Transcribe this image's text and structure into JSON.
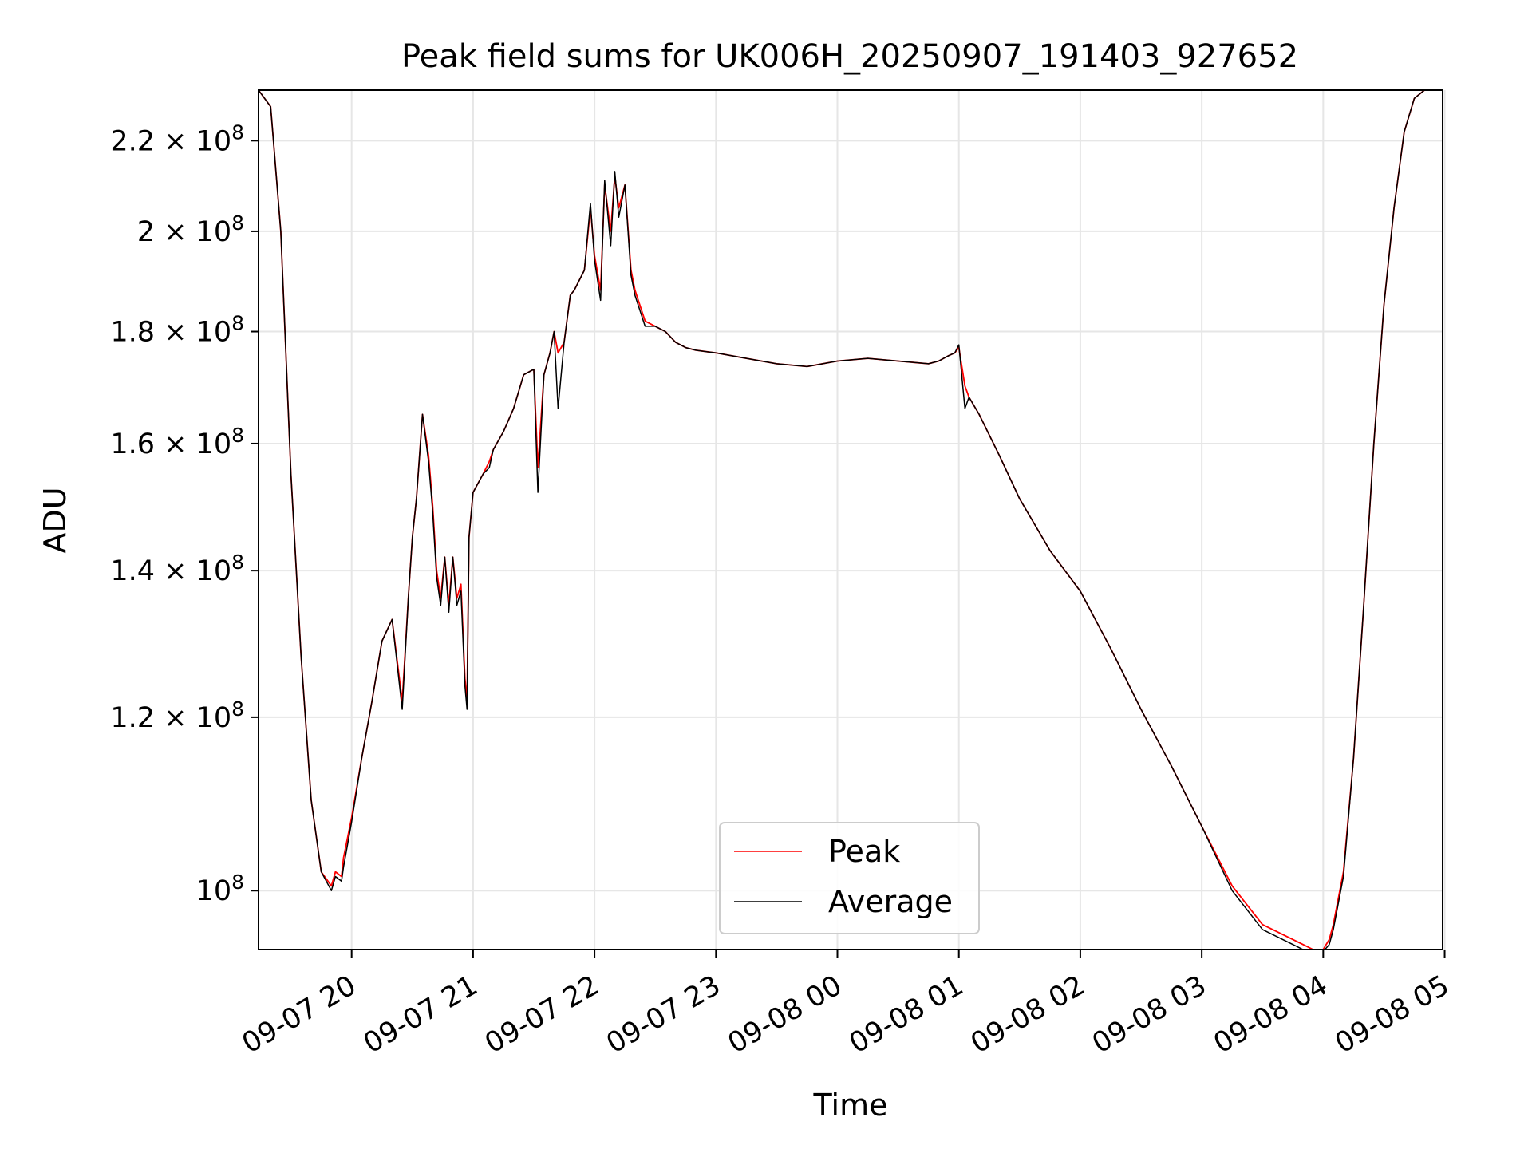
{
  "chart_data": {
    "type": "line",
    "title": "Peak field sums for UK006H_20250907_191403_927652",
    "xlabel": "Time",
    "ylabel": "ADU",
    "y_scale": "log",
    "xlim": [
      "2025-09-07 19:14",
      "2025-09-08 04:59"
    ],
    "ylim": [
      94000000,
      232000000
    ],
    "grid": true,
    "legend": {
      "placement": "lower-center"
    },
    "x_ticks": [
      "09-07 20",
      "09-07 21",
      "09-07 22",
      "09-07 23",
      "09-08 00",
      "09-08 01",
      "09-08 02",
      "09-08 03",
      "09-08 04",
      "09-08 05"
    ],
    "x_tick_times": [
      "2025-09-07 20:00",
      "2025-09-07 21:00",
      "2025-09-07 22:00",
      "2025-09-07 23:00",
      "2025-09-08 00:00",
      "2025-09-08 01:00",
      "2025-09-08 02:00",
      "2025-09-08 03:00",
      "2025-09-08 04:00",
      "2025-09-08 05:00"
    ],
    "y_ticks": [
      {
        "value": 100000000,
        "mantissa": "",
        "exponent": "8"
      },
      {
        "value": 120000000,
        "mantissa": "1.2",
        "exponent": "8"
      },
      {
        "value": 140000000,
        "mantissa": "1.4",
        "exponent": "8"
      },
      {
        "value": 160000000,
        "mantissa": "1.6",
        "exponent": "8"
      },
      {
        "value": 180000000,
        "mantissa": "1.8",
        "exponent": "8"
      },
      {
        "value": 200000000,
        "mantissa": "2",
        "exponent": "8"
      },
      {
        "value": 220000000,
        "mantissa": "2.2",
        "exponent": "8"
      }
    ],
    "series": [
      {
        "name": "Peak",
        "color": "#ff0000",
        "x": [
          "2025-09-07 19:14",
          "2025-09-07 19:20",
          "2025-09-07 19:25",
          "2025-09-07 19:30",
          "2025-09-07 19:35",
          "2025-09-07 19:40",
          "2025-09-07 19:45",
          "2025-09-07 19:50",
          "2025-09-07 19:52",
          "2025-09-07 19:55",
          "2025-09-07 19:56",
          "2025-09-07 20:00",
          "2025-09-07 20:05",
          "2025-09-07 20:10",
          "2025-09-07 20:15",
          "2025-09-07 20:20",
          "2025-09-07 20:25",
          "2025-09-07 20:28",
          "2025-09-07 20:30",
          "2025-09-07 20:32",
          "2025-09-07 20:35",
          "2025-09-07 20:38",
          "2025-09-07 20:40",
          "2025-09-07 20:42",
          "2025-09-07 20:44",
          "2025-09-07 20:46",
          "2025-09-07 20:48",
          "2025-09-07 20:50",
          "2025-09-07 20:52",
          "2025-09-07 20:54",
          "2025-09-07 20:56",
          "2025-09-07 20:57",
          "2025-09-07 20:58",
          "2025-09-07 21:00",
          "2025-09-07 21:05",
          "2025-09-07 21:08",
          "2025-09-07 21:10",
          "2025-09-07 21:15",
          "2025-09-07 21:20",
          "2025-09-07 21:25",
          "2025-09-07 21:30",
          "2025-09-07 21:32",
          "2025-09-07 21:35",
          "2025-09-07 21:38",
          "2025-09-07 21:40",
          "2025-09-07 21:42",
          "2025-09-07 21:45",
          "2025-09-07 21:48",
          "2025-09-07 21:50",
          "2025-09-07 21:55",
          "2025-09-07 21:58",
          "2025-09-07 22:00",
          "2025-09-07 22:03",
          "2025-09-07 22:05",
          "2025-09-07 22:08",
          "2025-09-07 22:10",
          "2025-09-07 22:12",
          "2025-09-07 22:15",
          "2025-09-07 22:18",
          "2025-09-07 22:20",
          "2025-09-07 22:25",
          "2025-09-07 22:30",
          "2025-09-07 22:35",
          "2025-09-07 22:40",
          "2025-09-07 22:45",
          "2025-09-07 22:50",
          "2025-09-07 23:00",
          "2025-09-07 23:15",
          "2025-09-07 23:30",
          "2025-09-07 23:45",
          "2025-09-08 00:00",
          "2025-09-08 00:15",
          "2025-09-08 00:30",
          "2025-09-08 00:45",
          "2025-09-08 00:50",
          "2025-09-08 00:55",
          "2025-09-08 00:58",
          "2025-09-08 01:00",
          "2025-09-08 01:03",
          "2025-09-08 01:05",
          "2025-09-08 01:10",
          "2025-09-08 01:20",
          "2025-09-08 01:30",
          "2025-09-08 01:45",
          "2025-09-08 02:00",
          "2025-09-08 02:15",
          "2025-09-08 02:30",
          "2025-09-08 02:45",
          "2025-09-08 03:00",
          "2025-09-08 03:15",
          "2025-09-08 03:30",
          "2025-09-08 03:45",
          "2025-09-08 03:50",
          "2025-09-08 03:55",
          "2025-09-08 04:00",
          "2025-09-08 04:03",
          "2025-09-08 04:05",
          "2025-09-08 04:10",
          "2025-09-08 04:15",
          "2025-09-08 04:20",
          "2025-09-08 04:25",
          "2025-09-08 04:30",
          "2025-09-08 04:35",
          "2025-09-08 04:40",
          "2025-09-08 04:45",
          "2025-09-08 04:50",
          "2025-09-08 04:53",
          "2025-09-08 04:59"
        ],
        "y": [
          232000000,
          228000000,
          200000000,
          155000000,
          128000000,
          110000000,
          102000000,
          100500000,
          102000000,
          101500000,
          103500000,
          108000000,
          115000000,
          122000000,
          130000000,
          133000000,
          122000000,
          136000000,
          145000000,
          151000000,
          165000000,
          158000000,
          150000000,
          140000000,
          136000000,
          142000000,
          135000000,
          142000000,
          136000000,
          138000000,
          125000000,
          122000000,
          145000000,
          152000000,
          155000000,
          157000000,
          159000000,
          162000000,
          166000000,
          172000000,
          173000000,
          156000000,
          172000000,
          176000000,
          180000000,
          176000000,
          178000000,
          187000000,
          188000000,
          192000000,
          205000000,
          195000000,
          188000000,
          210000000,
          200000000,
          212000000,
          205000000,
          210000000,
          192000000,
          188000000,
          182000000,
          181000000,
          180000000,
          178000000,
          177000000,
          176500000,
          176000000,
          175000000,
          174000000,
          173500000,
          174500000,
          175000000,
          174500000,
          174000000,
          174500000,
          175500000,
          176000000,
          177000000,
          170000000,
          168000000,
          165000000,
          158000000,
          151000000,
          143000000,
          137000000,
          129000000,
          121000000,
          114000000,
          107000000,
          100500000,
          96500000,
          95000000,
          94500000,
          94000000,
          94000000,
          95000000,
          96500000,
          102000000,
          115000000,
          135000000,
          160000000,
          185000000,
          205000000,
          222000000,
          230000000,
          232000000,
          232000000,
          232000000
        ]
      },
      {
        "name": "Average",
        "color": "#000000",
        "x": [
          "2025-09-07 19:14",
          "2025-09-07 19:20",
          "2025-09-07 19:25",
          "2025-09-07 19:30",
          "2025-09-07 19:35",
          "2025-09-07 19:40",
          "2025-09-07 19:45",
          "2025-09-07 19:50",
          "2025-09-07 19:52",
          "2025-09-07 19:55",
          "2025-09-07 19:56",
          "2025-09-07 20:00",
          "2025-09-07 20:05",
          "2025-09-07 20:10",
          "2025-09-07 20:15",
          "2025-09-07 20:20",
          "2025-09-07 20:25",
          "2025-09-07 20:28",
          "2025-09-07 20:30",
          "2025-09-07 20:32",
          "2025-09-07 20:35",
          "2025-09-07 20:38",
          "2025-09-07 20:40",
          "2025-09-07 20:42",
          "2025-09-07 20:44",
          "2025-09-07 20:46",
          "2025-09-07 20:48",
          "2025-09-07 20:50",
          "2025-09-07 20:52",
          "2025-09-07 20:54",
          "2025-09-07 20:56",
          "2025-09-07 20:57",
          "2025-09-07 20:58",
          "2025-09-07 21:00",
          "2025-09-07 21:05",
          "2025-09-07 21:08",
          "2025-09-07 21:10",
          "2025-09-07 21:15",
          "2025-09-07 21:20",
          "2025-09-07 21:25",
          "2025-09-07 21:30",
          "2025-09-07 21:32",
          "2025-09-07 21:35",
          "2025-09-07 21:38",
          "2025-09-07 21:40",
          "2025-09-07 21:42",
          "2025-09-07 21:45",
          "2025-09-07 21:48",
          "2025-09-07 21:50",
          "2025-09-07 21:55",
          "2025-09-07 21:58",
          "2025-09-07 22:00",
          "2025-09-07 22:03",
          "2025-09-07 22:05",
          "2025-09-07 22:08",
          "2025-09-07 22:10",
          "2025-09-07 22:12",
          "2025-09-07 22:15",
          "2025-09-07 22:18",
          "2025-09-07 22:20",
          "2025-09-07 22:25",
          "2025-09-07 22:30",
          "2025-09-07 22:35",
          "2025-09-07 22:40",
          "2025-09-07 22:45",
          "2025-09-07 22:50",
          "2025-09-07 23:00",
          "2025-09-07 23:15",
          "2025-09-07 23:30",
          "2025-09-07 23:45",
          "2025-09-08 00:00",
          "2025-09-08 00:15",
          "2025-09-08 00:30",
          "2025-09-08 00:45",
          "2025-09-08 00:50",
          "2025-09-08 00:55",
          "2025-09-08 00:58",
          "2025-09-08 01:00",
          "2025-09-08 01:03",
          "2025-09-08 01:05",
          "2025-09-08 01:10",
          "2025-09-08 01:20",
          "2025-09-08 01:30",
          "2025-09-08 01:45",
          "2025-09-08 02:00",
          "2025-09-08 02:15",
          "2025-09-08 02:30",
          "2025-09-08 02:45",
          "2025-09-08 03:00",
          "2025-09-08 03:15",
          "2025-09-08 03:30",
          "2025-09-08 03:45",
          "2025-09-08 03:50",
          "2025-09-08 03:55",
          "2025-09-08 04:00",
          "2025-09-08 04:03",
          "2025-09-08 04:05",
          "2025-09-08 04:10",
          "2025-09-08 04:15",
          "2025-09-08 04:20",
          "2025-09-08 04:25",
          "2025-09-08 04:30",
          "2025-09-08 04:35",
          "2025-09-08 04:40",
          "2025-09-08 04:45",
          "2025-09-08 04:50",
          "2025-09-08 04:53",
          "2025-09-08 04:59"
        ],
        "y": [
          232000000,
          228000000,
          200000000,
          155000000,
          128000000,
          110000000,
          102000000,
          100000000,
          101500000,
          101000000,
          102500000,
          107500000,
          115000000,
          122000000,
          130000000,
          133000000,
          121000000,
          136000000,
          145000000,
          151000000,
          165000000,
          157000000,
          149000000,
          139000000,
          135000000,
          142000000,
          134000000,
          142000000,
          135000000,
          137000000,
          124000000,
          121000000,
          145000000,
          152000000,
          155000000,
          156000000,
          159000000,
          162000000,
          166000000,
          172000000,
          173000000,
          152000000,
          172000000,
          176000000,
          180000000,
          166000000,
          178000000,
          187000000,
          188000000,
          192000000,
          206000000,
          194000000,
          186000000,
          211000000,
          197000000,
          213000000,
          203000000,
          210000000,
          191000000,
          187000000,
          181000000,
          181000000,
          180000000,
          178000000,
          177000000,
          176500000,
          176000000,
          175000000,
          174000000,
          173500000,
          174500000,
          175000000,
          174500000,
          174000000,
          174500000,
          175500000,
          176000000,
          177500000,
          166000000,
          168000000,
          165000000,
          158000000,
          151000000,
          143000000,
          137000000,
          129000000,
          121000000,
          114000000,
          107000000,
          100000000,
          96000000,
          94500000,
          94000000,
          93800000,
          93800000,
          94500000,
          96000000,
          101500000,
          115000000,
          135000000,
          160000000,
          185000000,
          205000000,
          222000000,
          230000000,
          232000000,
          232000000,
          232000000
        ]
      }
    ]
  }
}
